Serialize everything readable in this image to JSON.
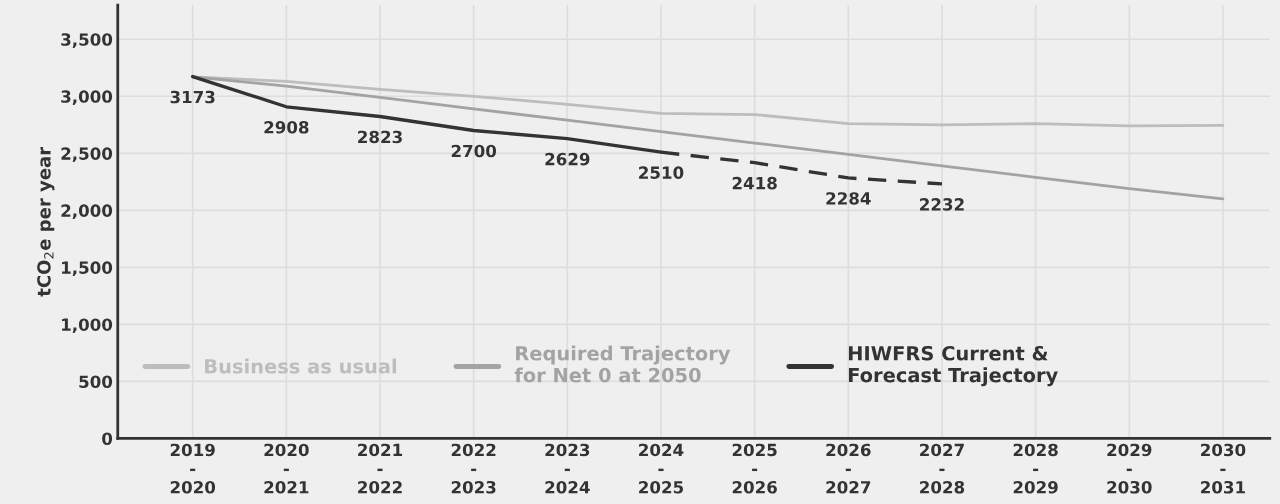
{
  "chart_data": {
    "type": "line",
    "ylabel": "tCO$_{2}$e per year",
    "categories": [
      "2019\n-\n2020",
      "2020\n-\n2021",
      "2021\n-\n2022",
      "2022\n-\n2023",
      "2023\n-\n2024",
      "2024\n-\n2025",
      "2025\n-\n2026",
      "2026\n-\n2027",
      "2027\n-\n2028",
      "2028\n-\n2029",
      "2029\n-\n2030",
      "2030\n-\n2031"
    ],
    "series": [
      {
        "name": "Business as usual",
        "color": "#bdbdbd",
        "values": [
          3170,
          3130,
          3060,
          3000,
          2930,
          2850,
          2840,
          2760,
          2750,
          2760,
          2740,
          2745
        ]
      },
      {
        "name": "Required Trajectory\nfor Net 0 at 2050",
        "color": "#a3a3a3",
        "values": [
          3170,
          3090,
          2990,
          2890,
          2790,
          2690,
          2590,
          2490,
          2390,
          2290,
          2190,
          2100
        ]
      },
      {
        "name": "HIWFRS Current &\nForecast Trajectory",
        "color": "#333333",
        "line_style": "solid",
        "values": [
          3173,
          2908,
          2823,
          2700,
          2629,
          2510,
          null,
          null,
          null,
          null,
          null,
          null
        ],
        "value_labels": [
          "3173",
          "2908",
          "2823",
          "2700",
          "2629",
          "2510",
          null,
          null,
          null,
          null,
          null,
          null
        ]
      },
      {
        "color": "#333333",
        "line_style": "dashed",
        "values": [
          null,
          null,
          null,
          null,
          null,
          2510,
          2418,
          2284,
          2232,
          null,
          null,
          null
        ],
        "value_labels": [
          null,
          null,
          null,
          null,
          null,
          null,
          "2418",
          "2284",
          "2232",
          null,
          null,
          null
        ]
      }
    ],
    "ylim": [
      0,
      3800
    ],
    "yticks": [
      0,
      500,
      {
        "value": 1000,
        "label": "1,000"
      },
      {
        "value": 1500,
        "label": "1,500"
      },
      {
        "value": 2000,
        "label": "2,000"
      },
      {
        "value": 2500,
        "label": "2,500"
      },
      {
        "value": 3000,
        "label": "3,000"
      },
      {
        "value": 3500,
        "label": "3,500"
      }
    ],
    "grid": true,
    "legend": "bottom",
    "marker": "none"
  }
}
